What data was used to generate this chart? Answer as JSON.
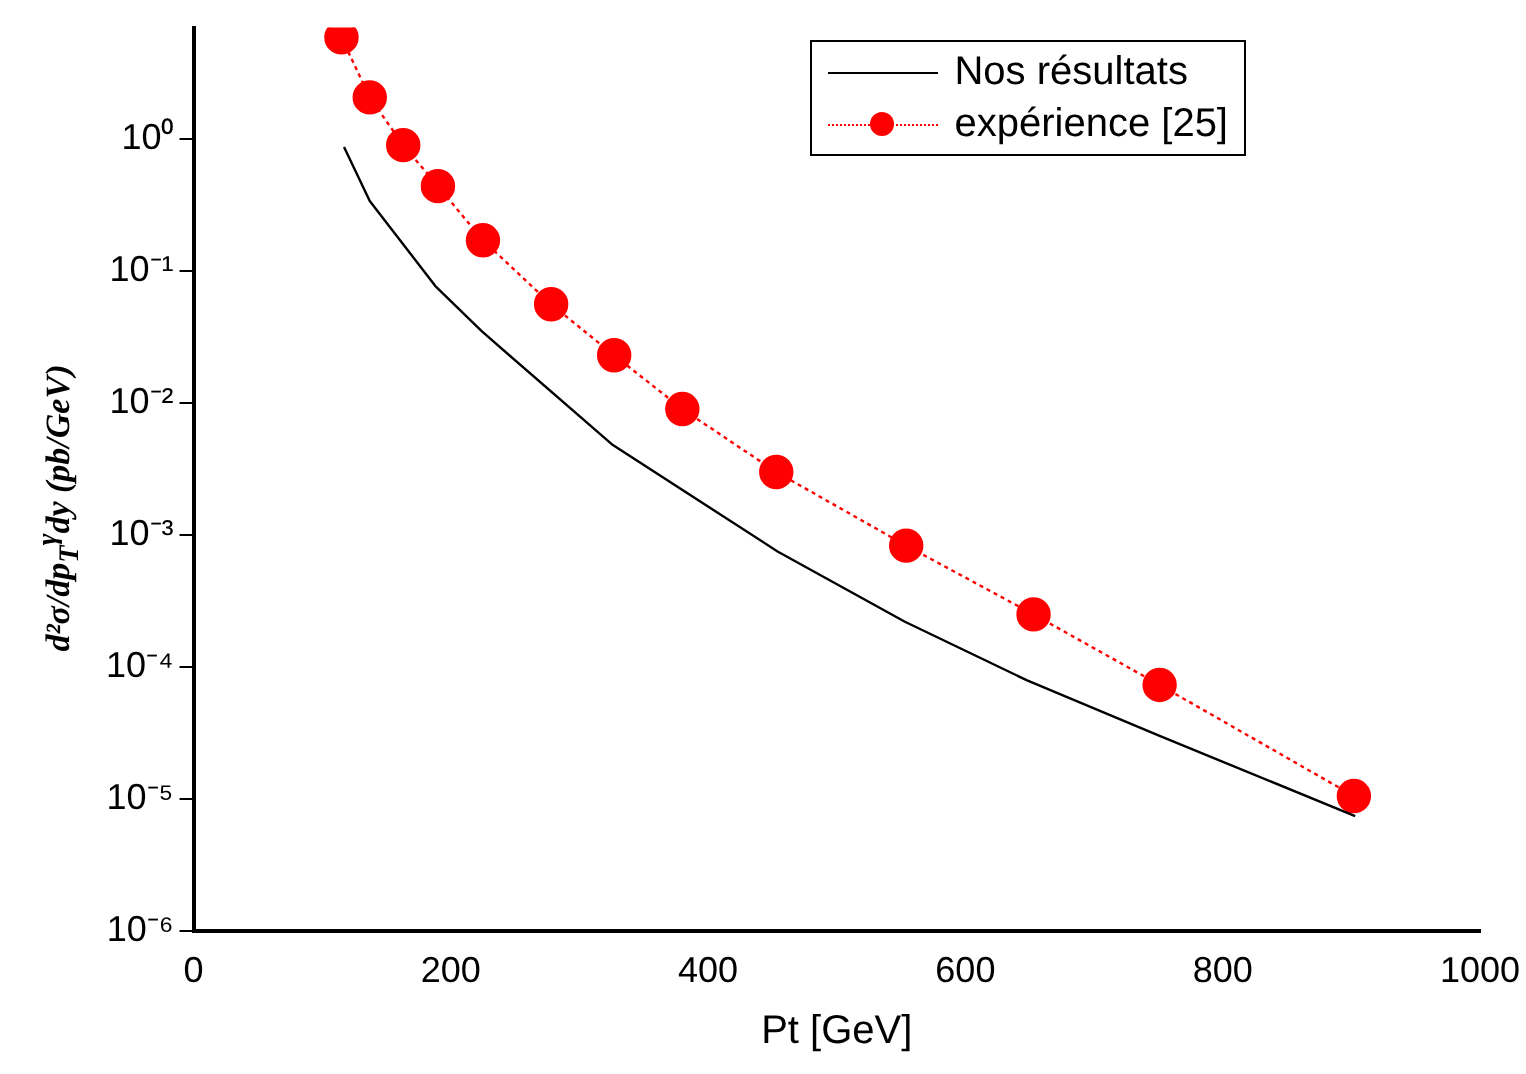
{
  "chart_data": {
    "type": "line",
    "xlabel": "Pt [GeV]",
    "ylabel": "d²σ/dp$_{T}$$^{γ}$dy (pb/GeV)",
    "xlim": [
      0,
      1000
    ],
    "xticks": [
      0,
      200,
      400,
      600,
      800,
      1000
    ],
    "ylim": [
      1e-06,
      7
    ],
    "yticks": [
      {
        "value": 1e-06,
        "label": "10⁻⁶"
      },
      {
        "value": 1e-05,
        "label": "10⁻⁵"
      },
      {
        "value": 0.0001,
        "label": "10⁻⁴"
      },
      {
        "value": 0.001,
        "label": "10⁻³"
      },
      {
        "value": 0.01,
        "label": "10⁻²"
      },
      {
        "value": 0.1,
        "label": "10⁻¹"
      },
      {
        "value": 1,
        "label": "10⁰"
      }
    ],
    "log": "y",
    "grid": false,
    "legend": "top right",
    "series": [
      {
        "name": "Nos résultats",
        "color": "#000000",
        "marker": "none",
        "line_style": "solid",
        "x": [
          117,
          137,
          188,
          224,
          326,
          454,
          553,
          648,
          751,
          903
        ],
        "values": [
          0.87,
          0.34,
          0.077,
          0.035,
          0.0048,
          0.00075,
          0.00022,
          7.9e-05,
          3e-05,
          7.4e-06
        ]
      },
      {
        "name": "expérience [25]",
        "color": "#ff0000",
        "marker": "circle",
        "line_style": "dotted",
        "x": [
          115,
          137,
          163,
          190,
          225,
          278,
          327,
          380,
          453,
          554,
          653,
          751,
          902
        ],
        "values": [
          5.9,
          2.07,
          0.9,
          0.44,
          0.171,
          0.056,
          0.023,
          0.009,
          0.003,
          0.00083,
          0.00025,
          7.3e-05,
          1.05e-05
        ]
      }
    ]
  }
}
